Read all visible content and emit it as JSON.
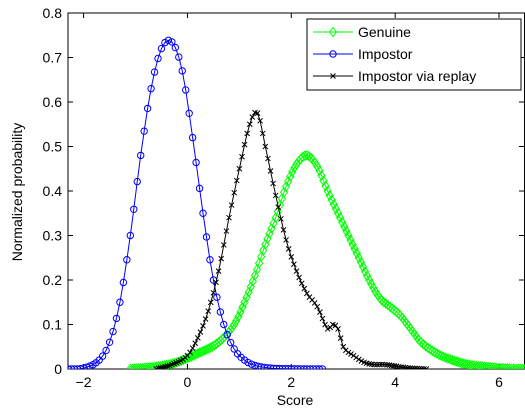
{
  "chart_data": {
    "type": "line",
    "title": "",
    "xlabel": "Score",
    "ylabel": "Normalized probability",
    "xlim": [
      -2.3,
      6.5
    ],
    "ylim": [
      0,
      0.8
    ],
    "xticks": [
      -2,
      0,
      2,
      4,
      6
    ],
    "yticks": [
      0,
      0.1,
      0.2,
      0.3,
      0.4,
      0.5,
      0.6,
      0.7,
      0.8
    ],
    "xtick_labels": [
      "−2",
      "0",
      "2",
      "4",
      "6"
    ],
    "ytick_labels": [
      "0",
      "0.1",
      "0.2",
      "0.3",
      "0.4",
      "0.5",
      "0.6",
      "0.7",
      "0.8"
    ],
    "grid": false,
    "legend_position": "top-right",
    "series": [
      {
        "name": "Genuine",
        "color": "#00ff00",
        "marker": "diamond",
        "x": [
          -1.1,
          -0.6,
          -0.2,
          0.2,
          0.6,
          0.9,
          1.1,
          1.3,
          1.5,
          1.7,
          1.9,
          2.1,
          2.3,
          2.5,
          2.7,
          2.9,
          3.1,
          3.3,
          3.5,
          3.7,
          3.9,
          4.1,
          4.3,
          4.5,
          4.8,
          5.1,
          5.4,
          5.8,
          6.2,
          6.5
        ],
        "y": [
          0,
          0.005,
          0.015,
          0.035,
          0.06,
          0.1,
          0.15,
          0.21,
          0.28,
          0.34,
          0.41,
          0.46,
          0.48,
          0.455,
          0.4,
          0.35,
          0.3,
          0.25,
          0.2,
          0.16,
          0.14,
          0.12,
          0.09,
          0.06,
          0.035,
          0.02,
          0.01,
          0.004,
          0.001,
          0
        ]
      },
      {
        "name": "Impostor",
        "color": "#0000ff",
        "marker": "circle",
        "x": [
          -2.3,
          -2.0,
          -1.7,
          -1.5,
          -1.3,
          -1.1,
          -0.9,
          -0.7,
          -0.5,
          -0.3,
          -0.1,
          0.1,
          0.3,
          0.5,
          0.7,
          0.9,
          1.1,
          1.3,
          1.6,
          2.0,
          2.6
        ],
        "y": [
          0,
          0.002,
          0.02,
          0.06,
          0.15,
          0.3,
          0.48,
          0.63,
          0.72,
          0.735,
          0.67,
          0.52,
          0.35,
          0.2,
          0.1,
          0.045,
          0.02,
          0.008,
          0.002,
          0.0005,
          0
        ]
      },
      {
        "name": "Impostor via replay",
        "color": "#000000",
        "marker": "x",
        "x": [
          -0.6,
          -0.3,
          0.0,
          0.2,
          0.4,
          0.6,
          0.8,
          1.0,
          1.2,
          1.35,
          1.5,
          1.7,
          1.9,
          2.1,
          2.3,
          2.5,
          2.7,
          2.8,
          2.9,
          3.0,
          3.2,
          3.4,
          3.6,
          3.8,
          4.2,
          4.6
        ],
        "y": [
          0,
          0.01,
          0.03,
          0.07,
          0.13,
          0.22,
          0.34,
          0.45,
          0.55,
          0.575,
          0.5,
          0.39,
          0.29,
          0.22,
          0.17,
          0.14,
          0.09,
          0.1,
          0.09,
          0.05,
          0.03,
          0.015,
          0.01,
          0.01,
          0.003,
          0
        ]
      }
    ]
  }
}
